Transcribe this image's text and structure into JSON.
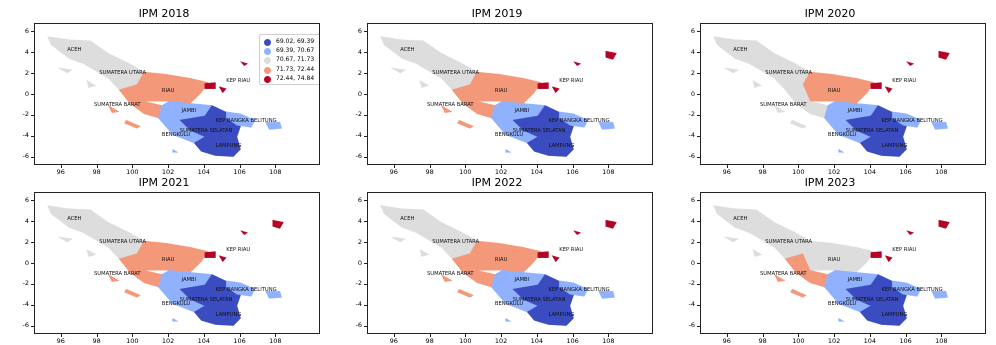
{
  "colors": {
    "class_1": "#3b4cc0",
    "class_2": "#8fb1fe",
    "class_3": "#dddddd",
    "class_4": "#f4987a",
    "class_5": "#b40426"
  },
  "legend": {
    "items": [
      {
        "label": "69.02, 69.39",
        "class": "class_1"
      },
      {
        "label": "69.39, 70.67",
        "class": "class_2"
      },
      {
        "label": "70.67, 71.73",
        "class": "class_3"
      },
      {
        "label": "71.73, 72.44",
        "class": "class_4"
      },
      {
        "label": "72.44, 74.84",
        "class": "class_5"
      }
    ]
  },
  "axis": {
    "x_ticks": [
      "96",
      "98",
      "100",
      "102",
      "104",
      "106",
      "108"
    ],
    "y_ticks": [
      "6",
      "4",
      "2",
      "0",
      "-2",
      "-4",
      "-6"
    ],
    "xlim": [
      94.5,
      110.5
    ],
    "ylim": [
      -6.8,
      6.8
    ]
  },
  "region_labels": {
    "aceh": "ACEH",
    "sumut": "SUMATERA UTARA",
    "riau": "RIAU",
    "kepri": "KEP RIAU",
    "sumbar": "SUMATERA BARAT",
    "jambi": "JAMBI",
    "babel": "KEP BANGKA BELITUNG",
    "sumsel": "SUMATERA SELATAN",
    "bengkulu": "BENGKULU",
    "lampung": "LAMPUNG"
  },
  "panels": [
    {
      "title": "IPM 2018",
      "classes": {
        "aceh": "class_3",
        "sumut": "class_3",
        "riau": "class_4",
        "kepri": "class_5",
        "sumbar": "class_4",
        "jambi": "class_2",
        "babel": "class_2",
        "sumsel": "class_1",
        "bengkulu": "class_2",
        "lampung": "class_1"
      }
    },
    {
      "title": "IPM 2019",
      "classes": {
        "aceh": "class_3",
        "sumut": "class_3",
        "riau": "class_4",
        "kepri": "class_5",
        "sumbar": "class_4",
        "jambi": "class_2",
        "babel": "class_2",
        "sumsel": "class_1",
        "bengkulu": "class_2",
        "lampung": "class_1"
      }
    },
    {
      "title": "IPM 2020",
      "classes": {
        "aceh": "class_3",
        "sumut": "class_3",
        "riau": "class_4",
        "kepri": "class_5",
        "sumbar": "class_3",
        "jambi": "class_2",
        "babel": "class_2",
        "sumsel": "class_1",
        "bengkulu": "class_2",
        "lampung": "class_1"
      }
    },
    {
      "title": "IPM 2021",
      "classes": {
        "aceh": "class_3",
        "sumut": "class_3",
        "riau": "class_4",
        "kepri": "class_5",
        "sumbar": "class_4",
        "jambi": "class_2",
        "babel": "class_2",
        "sumsel": "class_1",
        "bengkulu": "class_2",
        "lampung": "class_1"
      }
    },
    {
      "title": "IPM 2022",
      "classes": {
        "aceh": "class_3",
        "sumut": "class_3",
        "riau": "class_4",
        "kepri": "class_5",
        "sumbar": "class_4",
        "jambi": "class_2",
        "babel": "class_2",
        "sumsel": "class_1",
        "bengkulu": "class_2",
        "lampung": "class_1"
      }
    },
    {
      "title": "IPM 2023",
      "classes": {
        "aceh": "class_3",
        "sumut": "class_3",
        "riau": "class_3",
        "kepri": "class_5",
        "sumbar": "class_4",
        "jambi": "class_2",
        "babel": "class_2",
        "sumsel": "class_1",
        "bengkulu": "class_2",
        "lampung": "class_1"
      }
    }
  ]
}
